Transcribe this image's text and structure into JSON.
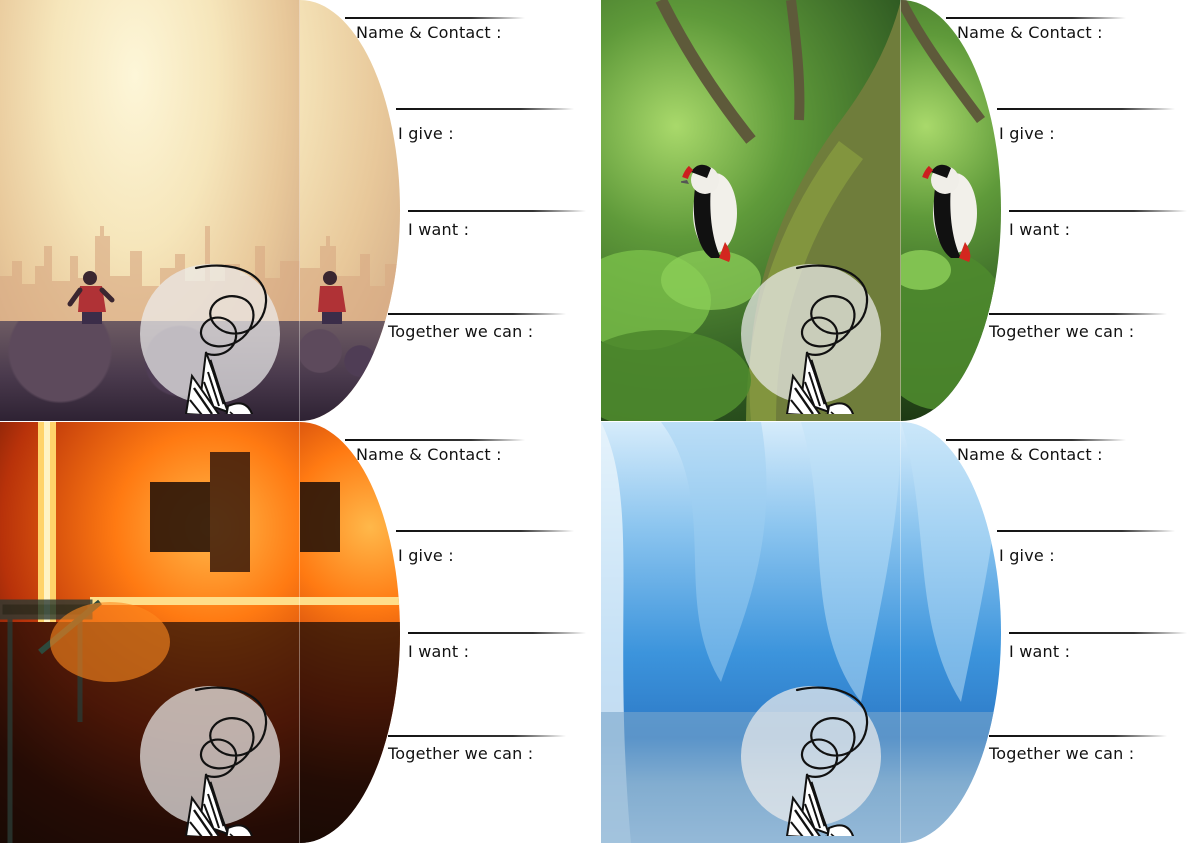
{
  "cards": [
    {
      "scene": "sunrise city with runner",
      "fields": {
        "name_contact": "Name & Contact :",
        "i_give": "I give :",
        "i_want": "I want :",
        "together": "Together we can :"
      }
    },
    {
      "scene": "woodpecker on mossy tree",
      "fields": {
        "name_contact": "Name & Contact :",
        "i_give": "I give :",
        "i_want": "I want :",
        "together": "Together we can :"
      }
    },
    {
      "scene": "steel mill fire",
      "fields": {
        "name_contact": "Name & Contact :",
        "i_give": "I give :",
        "i_want": "I want :",
        "together": "Together we can :"
      }
    },
    {
      "scene": "blue ice cave",
      "fields": {
        "name_contact": "Name & Contact :",
        "i_give": "I give :",
        "i_want": "I want :",
        "together": "Together we can :"
      }
    }
  ],
  "icons": {
    "logo": "butterfly-spiral-icon"
  },
  "colors": {
    "text": "#111111",
    "line": "#222222",
    "badge": "#ebebeb"
  }
}
